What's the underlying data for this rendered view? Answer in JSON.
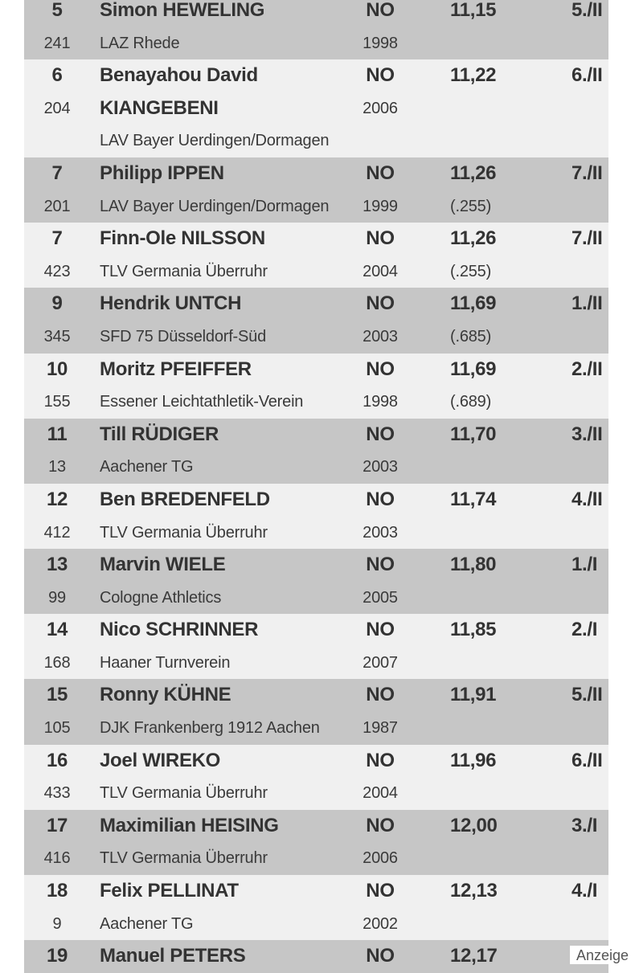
{
  "results": [
    {
      "place": "5",
      "name": "Simon HEWELING",
      "nation": "NO",
      "time": "11,15",
      "heat": "5./II",
      "bib": "241",
      "club": "LAZ Rhede",
      "year": "1998",
      "note": ""
    },
    {
      "place": "6",
      "name": "Benayahou David",
      "name2": "KIANGEBENI",
      "nation": "NO",
      "time": "11,22",
      "heat": "6./II",
      "bib": "204",
      "club": "LAV Bayer Uerdingen/Dormagen",
      "year": "2006",
      "note": ""
    },
    {
      "place": "7",
      "name": "Philipp IPPEN",
      "nation": "NO",
      "time": "11,26",
      "heat": "7./II",
      "bib": "201",
      "club": "LAV Bayer Uerdingen/Dormagen",
      "year": "1999",
      "note": "(.255)"
    },
    {
      "place": "7",
      "name": "Finn-Ole NILSSON",
      "nation": "NO",
      "time": "11,26",
      "heat": "7./II",
      "bib": "423",
      "club": "TLV Germania Überruhr",
      "year": "2004",
      "note": "(.255)"
    },
    {
      "place": "9",
      "name": "Hendrik UNTCH",
      "nation": "NO",
      "time": "11,69",
      "heat": "1./II",
      "bib": "345",
      "club": "SFD 75 Düsseldorf-Süd",
      "year": "2003",
      "note": "(.685)"
    },
    {
      "place": "10",
      "name": "Moritz PFEIFFER",
      "nation": "NO",
      "time": "11,69",
      "heat": "2./II",
      "bib": "155",
      "club": "Essener Leichtathletik-Verein",
      "year": "1998",
      "note": "(.689)"
    },
    {
      "place": "11",
      "name": "Till RÜDIGER",
      "nation": "NO",
      "time": "11,70",
      "heat": "3./II",
      "bib": "13",
      "club": "Aachener TG",
      "year": "2003",
      "note": ""
    },
    {
      "place": "12",
      "name": "Ben BREDENFELD",
      "nation": "NO",
      "time": "11,74",
      "heat": "4./II",
      "bib": "412",
      "club": "TLV Germania Überruhr",
      "year": "2003",
      "note": ""
    },
    {
      "place": "13",
      "name": "Marvin WIELE",
      "nation": "NO",
      "time": "11,80",
      "heat": "1./I",
      "bib": "99",
      "club": "Cologne Athletics",
      "year": "2005",
      "note": ""
    },
    {
      "place": "14",
      "name": "Nico SCHRINNER",
      "nation": "NO",
      "time": "11,85",
      "heat": "2./I",
      "bib": "168",
      "club": "Haaner Turnverein",
      "year": "2007",
      "note": ""
    },
    {
      "place": "15",
      "name": "Ronny KÜHNE",
      "nation": "NO",
      "time": "11,91",
      "heat": "5./II",
      "bib": "105",
      "club": "DJK Frankenberg 1912 Aachen",
      "year": "1987",
      "note": ""
    },
    {
      "place": "16",
      "name": "Joel WIREKO",
      "nation": "NO",
      "time": "11,96",
      "heat": "6./II",
      "bib": "433",
      "club": "TLV Germania Überruhr",
      "year": "2004",
      "note": ""
    },
    {
      "place": "17",
      "name": "Maximilian HEISING",
      "nation": "NO",
      "time": "12,00",
      "heat": "3./I",
      "bib": "416",
      "club": "TLV Germania Überruhr",
      "year": "2006",
      "note": ""
    },
    {
      "place": "18",
      "name": "Felix PELLINAT",
      "nation": "NO",
      "time": "12,13",
      "heat": "4./I",
      "bib": "9",
      "club": "Aachener TG",
      "year": "2002",
      "note": ""
    },
    {
      "place": "19",
      "name": "Manuel PETERS",
      "nation": "NO",
      "time": "12,17",
      "heat": "",
      "bib": "",
      "club": "",
      "year": "",
      "note": ""
    }
  ],
  "ad_label": "Anzeige"
}
